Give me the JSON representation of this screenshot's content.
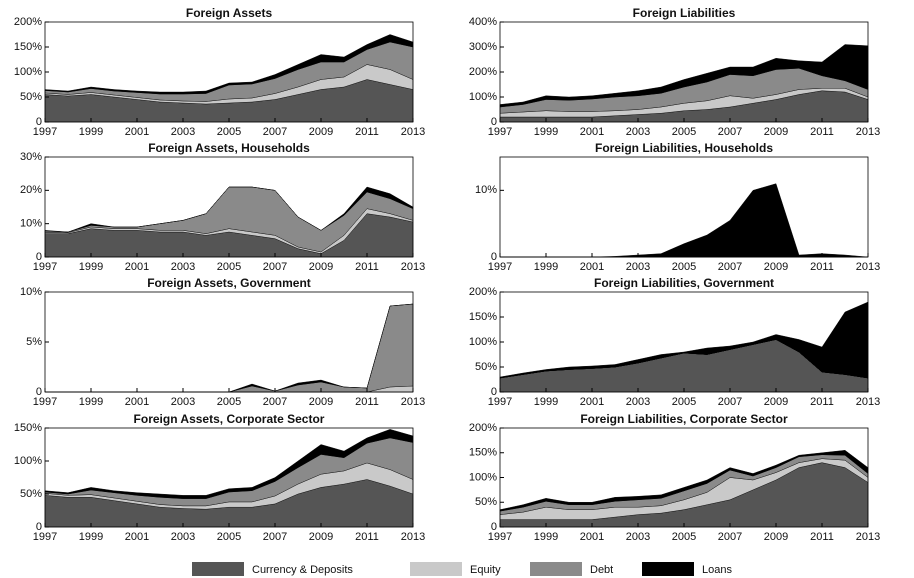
{
  "legend": [
    {
      "name": "Currency & Deposits",
      "color": "#555555"
    },
    {
      "name": "Equity",
      "color": "#c9c9c9"
    },
    {
      "name": "Debt",
      "color": "#8a8a8a"
    },
    {
      "name": "Loans",
      "color": "#000000"
    }
  ],
  "chart_data": [
    {
      "type": "stacked-area",
      "title": "Foreign Assets",
      "x": [
        1997,
        1998,
        1999,
        2000,
        2001,
        2002,
        2003,
        2004,
        2005,
        2006,
        2007,
        2008,
        2009,
        2010,
        2011,
        2012,
        2013
      ],
      "xlim": [
        1997,
        2013
      ],
      "xticks": [
        1997,
        1999,
        2001,
        2003,
        2005,
        2007,
        2009,
        2011,
        2013
      ],
      "ylim": [
        0,
        200
      ],
      "yticks": [
        {
          "value": 0,
          "label": "0"
        },
        {
          "value": 50,
          "label": "50%"
        },
        {
          "value": 100,
          "label": "100%"
        },
        {
          "value": 150,
          "label": "150%"
        },
        {
          "value": 200,
          "label": "200%"
        }
      ],
      "series": [
        {
          "values": [
            55,
            52,
            55,
            50,
            45,
            40,
            38,
            36,
            38,
            40,
            45,
            55,
            65,
            70,
            85,
            75,
            65
          ]
        },
        {
          "values": [
            3,
            3,
            4,
            4,
            4,
            4,
            4,
            5,
            8,
            8,
            12,
            15,
            20,
            20,
            30,
            30,
            20
          ]
        },
        {
          "values": [
            5,
            5,
            8,
            8,
            10,
            12,
            14,
            16,
            28,
            28,
            30,
            35,
            35,
            30,
            30,
            55,
            65
          ]
        },
        {
          "values": [
            2,
            2,
            3,
            3,
            3,
            4,
            4,
            5,
            4,
            4,
            8,
            10,
            15,
            10,
            10,
            15,
            10
          ]
        }
      ]
    },
    {
      "type": "stacked-area",
      "title": "Foreign Liabilities",
      "x": [
        1997,
        1998,
        1999,
        2000,
        2001,
        2002,
        2003,
        2004,
        2005,
        2006,
        2007,
        2008,
        2009,
        2010,
        2011,
        2012,
        2013
      ],
      "xlim": [
        1997,
        2013
      ],
      "xticks": [
        1997,
        1999,
        2001,
        2003,
        2005,
        2007,
        2009,
        2011,
        2013
      ],
      "ylim": [
        0,
        400
      ],
      "yticks": [
        {
          "value": 0,
          "label": "0"
        },
        {
          "value": 100,
          "label": "100%"
        },
        {
          "value": 200,
          "label": "200%"
        },
        {
          "value": 300,
          "label": "300%"
        },
        {
          "value": 400,
          "label": "400%"
        }
      ],
      "series": [
        {
          "values": [
            20,
            20,
            20,
            20,
            20,
            25,
            30,
            35,
            45,
            50,
            60,
            75,
            90,
            110,
            125,
            120,
            90
          ]
        },
        {
          "values": [
            15,
            20,
            25,
            22,
            22,
            20,
            20,
            25,
            30,
            35,
            45,
            20,
            20,
            20,
            10,
            15,
            10
          ]
        },
        {
          "values": [
            25,
            30,
            45,
            45,
            50,
            55,
            55,
            55,
            65,
            75,
            85,
            90,
            100,
            85,
            50,
            30,
            30
          ]
        },
        {
          "values": [
            10,
            10,
            15,
            13,
            13,
            15,
            20,
            25,
            30,
            35,
            30,
            35,
            45,
            30,
            55,
            145,
            175
          ]
        }
      ]
    },
    {
      "type": "stacked-area",
      "title": "Foreign Assets, Households",
      "x": [
        1997,
        1998,
        1999,
        2000,
        2001,
        2002,
        2003,
        2004,
        2005,
        2006,
        2007,
        2008,
        2009,
        2010,
        2011,
        2012,
        2013
      ],
      "xlim": [
        1997,
        2013
      ],
      "xticks": [
        1997,
        1999,
        2001,
        2003,
        2005,
        2007,
        2009,
        2011,
        2013
      ],
      "ylim": [
        0,
        30
      ],
      "yticks": [
        {
          "value": 0,
          "label": "0"
        },
        {
          "value": 10,
          "label": "10%"
        },
        {
          "value": 20,
          "label": "20%"
        },
        {
          "value": 30,
          "label": "30%"
        }
      ],
      "series": [
        {
          "values": [
            7,
            7,
            8.5,
            8,
            8,
            7.5,
            7.5,
            6.5,
            7.5,
            6.5,
            5.5,
            2.5,
            1,
            5,
            13,
            12,
            10.5
          ]
        },
        {
          "values": [
            0.3,
            0.3,
            0.5,
            0.5,
            0.5,
            0.5,
            0.5,
            0.5,
            1,
            1,
            1,
            0.5,
            0.5,
            1.5,
            1.5,
            1,
            0.5
          ]
        },
        {
          "values": [
            0.5,
            0.2,
            0.5,
            0.5,
            0.5,
            2,
            3,
            6,
            12.5,
            13.5,
            13.5,
            9,
            6.5,
            6,
            5,
            4.5,
            3.5
          ]
        },
        {
          "values": [
            0.2,
            0,
            0.5,
            0,
            0,
            0,
            0,
            0,
            0,
            0,
            0,
            0,
            0,
            0.5,
            1.5,
            1.5,
            0.5
          ]
        }
      ]
    },
    {
      "type": "stacked-area",
      "title": "Foreign Liabilities, Households",
      "x": [
        1997,
        1998,
        1999,
        2000,
        2001,
        2002,
        2003,
        2004,
        2005,
        2006,
        2007,
        2008,
        2009,
        2010,
        2011,
        2012,
        2013
      ],
      "xlim": [
        1997,
        2013
      ],
      "xticks": [
        1997,
        1999,
        2001,
        2003,
        2005,
        2007,
        2009,
        2011,
        2013
      ],
      "ylim": [
        0,
        15
      ],
      "yticks": [
        {
          "value": 0,
          "label": "0"
        },
        {
          "value": 10,
          "label": "10%"
        }
      ],
      "series": [
        {
          "values": [
            0,
            0,
            0,
            0,
            0,
            0,
            0,
            0,
            0,
            0,
            0,
            0,
            0,
            0,
            0,
            0,
            0
          ]
        },
        {
          "values": [
            0,
            0,
            0,
            0,
            0,
            0,
            0,
            0,
            0,
            0,
            0,
            0,
            0,
            0,
            0,
            0,
            0
          ]
        },
        {
          "values": [
            0,
            0,
            0,
            0,
            0,
            0,
            0,
            0,
            0,
            0,
            0,
            0,
            0,
            0,
            0,
            0,
            0
          ]
        },
        {
          "values": [
            0,
            0,
            0,
            0,
            0,
            0.1,
            0.3,
            0.5,
            2,
            3.3,
            5.5,
            10,
            11,
            0.3,
            0.5,
            0.3,
            0
          ]
        }
      ]
    },
    {
      "type": "stacked-area",
      "title": "Foreign Assets, Government",
      "x": [
        1997,
        1998,
        1999,
        2000,
        2001,
        2002,
        2003,
        2004,
        2005,
        2006,
        2007,
        2008,
        2009,
        2010,
        2011,
        2012,
        2013
      ],
      "xlim": [
        1997,
        2013
      ],
      "xticks": [
        1997,
        1999,
        2001,
        2003,
        2005,
        2007,
        2009,
        2011,
        2013
      ],
      "ylim": [
        0,
        10
      ],
      "yticks": [
        {
          "value": 0,
          "label": "0"
        },
        {
          "value": 5,
          "label": "5%"
        },
        {
          "value": 10,
          "label": "10%"
        }
      ],
      "series": [
        {
          "values": [
            0,
            0,
            0,
            0,
            0,
            0,
            0,
            0,
            0,
            0,
            0,
            0,
            0,
            0,
            0,
            0,
            0
          ]
        },
        {
          "values": [
            0,
            0,
            0,
            0,
            0,
            0,
            0,
            0,
            0,
            0,
            0,
            0,
            0,
            0,
            0,
            0.5,
            0.6
          ]
        },
        {
          "values": [
            0,
            0,
            0,
            0,
            0,
            0,
            0,
            0,
            0,
            0.6,
            0.1,
            0.7,
            1,
            0.5,
            0.4,
            8.1,
            8.2
          ]
        },
        {
          "values": [
            0,
            0,
            0,
            0,
            0,
            0,
            0,
            0,
            0,
            0.2,
            0,
            0.2,
            0.2,
            0,
            0,
            0,
            0
          ]
        }
      ]
    },
    {
      "type": "stacked-area",
      "title": "Foreign Liabilities, Government",
      "x": [
        1997,
        1998,
        1999,
        2000,
        2001,
        2002,
        2003,
        2004,
        2005,
        2006,
        2007,
        2008,
        2009,
        2010,
        2011,
        2012,
        2013
      ],
      "xlim": [
        1997,
        2013
      ],
      "xticks": [
        1997,
        1999,
        2001,
        2003,
        2005,
        2007,
        2009,
        2011,
        2013
      ],
      "ylim": [
        0,
        200
      ],
      "yticks": [
        {
          "value": 0,
          "label": "0"
        },
        {
          "value": 50,
          "label": "50%"
        },
        {
          "value": 100,
          "label": "100%"
        },
        {
          "value": 150,
          "label": "150%"
        },
        {
          "value": 200,
          "label": "200%"
        }
      ],
      "series": [
        {
          "values": [
            28,
            35,
            42,
            45,
            47,
            50,
            58,
            68,
            78,
            75,
            85,
            95,
            105,
            80,
            40,
            35,
            28
          ]
        },
        {
          "values": [
            0,
            0,
            0,
            0,
            0,
            0,
            0,
            0,
            0,
            0,
            0,
            0,
            0,
            0,
            0,
            0,
            0
          ]
        },
        {
          "values": [
            0,
            0,
            0,
            0,
            0,
            0,
            0,
            0,
            0,
            0,
            0,
            0,
            0,
            0,
            0,
            0,
            0
          ]
        },
        {
          "values": [
            2,
            3,
            3,
            5,
            5,
            5,
            7,
            7,
            2,
            13,
            7,
            5,
            10,
            25,
            50,
            125,
            152
          ]
        }
      ]
    },
    {
      "type": "stacked-area",
      "title": "Foreign Assets, Corporate Sector",
      "x": [
        1997,
        1998,
        1999,
        2000,
        2001,
        2002,
        2003,
        2004,
        2005,
        2006,
        2007,
        2008,
        2009,
        2010,
        2011,
        2012,
        2013
      ],
      "xlim": [
        1997,
        2013
      ],
      "xticks": [
        1997,
        1999,
        2001,
        2003,
        2005,
        2007,
        2009,
        2011,
        2013
      ],
      "ylim": [
        0,
        150
      ],
      "yticks": [
        {
          "value": 0,
          "label": "0"
        },
        {
          "value": 50,
          "label": "50%"
        },
        {
          "value": 100,
          "label": "100%"
        },
        {
          "value": 150,
          "label": "150%"
        }
      ],
      "series": [
        {
          "values": [
            48,
            45,
            45,
            40,
            35,
            30,
            28,
            27,
            30,
            30,
            35,
            50,
            60,
            65,
            72,
            62,
            50
          ]
        },
        {
          "values": [
            3,
            3,
            4,
            4,
            4,
            4,
            4,
            5,
            8,
            8,
            12,
            15,
            20,
            20,
            25,
            25,
            22
          ]
        },
        {
          "values": [
            2,
            2,
            7,
            8,
            9,
            11,
            11,
            11,
            15,
            17,
            22,
            25,
            30,
            20,
            30,
            48,
            56
          ]
        },
        {
          "values": [
            2,
            2,
            4,
            3,
            4,
            5,
            5,
            5,
            5,
            5,
            6,
            10,
            15,
            10,
            8,
            13,
            10
          ]
        }
      ]
    },
    {
      "type": "stacked-area",
      "title": "Foreign Liabilities, Corporate Sector",
      "x": [
        1997,
        1998,
        1999,
        2000,
        2001,
        2002,
        2003,
        2004,
        2005,
        2006,
        2007,
        2008,
        2009,
        2010,
        2011,
        2012,
        2013
      ],
      "xlim": [
        1997,
        2013
      ],
      "xticks": [
        1997,
        1999,
        2001,
        2003,
        2005,
        2007,
        2009,
        2011,
        2013
      ],
      "ylim": [
        0,
        200
      ],
      "yticks": [
        {
          "value": 0,
          "label": "0"
        },
        {
          "value": 50,
          "label": "50%"
        },
        {
          "value": 100,
          "label": "100%"
        },
        {
          "value": 150,
          "label": "150%"
        },
        {
          "value": 200,
          "label": "200%"
        }
      ],
      "series": [
        {
          "values": [
            15,
            15,
            15,
            15,
            15,
            20,
            25,
            28,
            35,
            45,
            55,
            75,
            95,
            120,
            130,
            120,
            90
          ]
        },
        {
          "values": [
            10,
            15,
            25,
            20,
            20,
            20,
            15,
            15,
            20,
            25,
            45,
            20,
            15,
            10,
            8,
            15,
            10
          ]
        },
        {
          "values": [
            7,
            10,
            12,
            10,
            10,
            12,
            15,
            15,
            18,
            18,
            15,
            8,
            10,
            12,
            8,
            10,
            8
          ]
        },
        {
          "values": [
            3,
            5,
            6,
            5,
            5,
            8,
            7,
            7,
            7,
            7,
            5,
            5,
            5,
            3,
            4,
            10,
            12
          ]
        }
      ]
    }
  ]
}
